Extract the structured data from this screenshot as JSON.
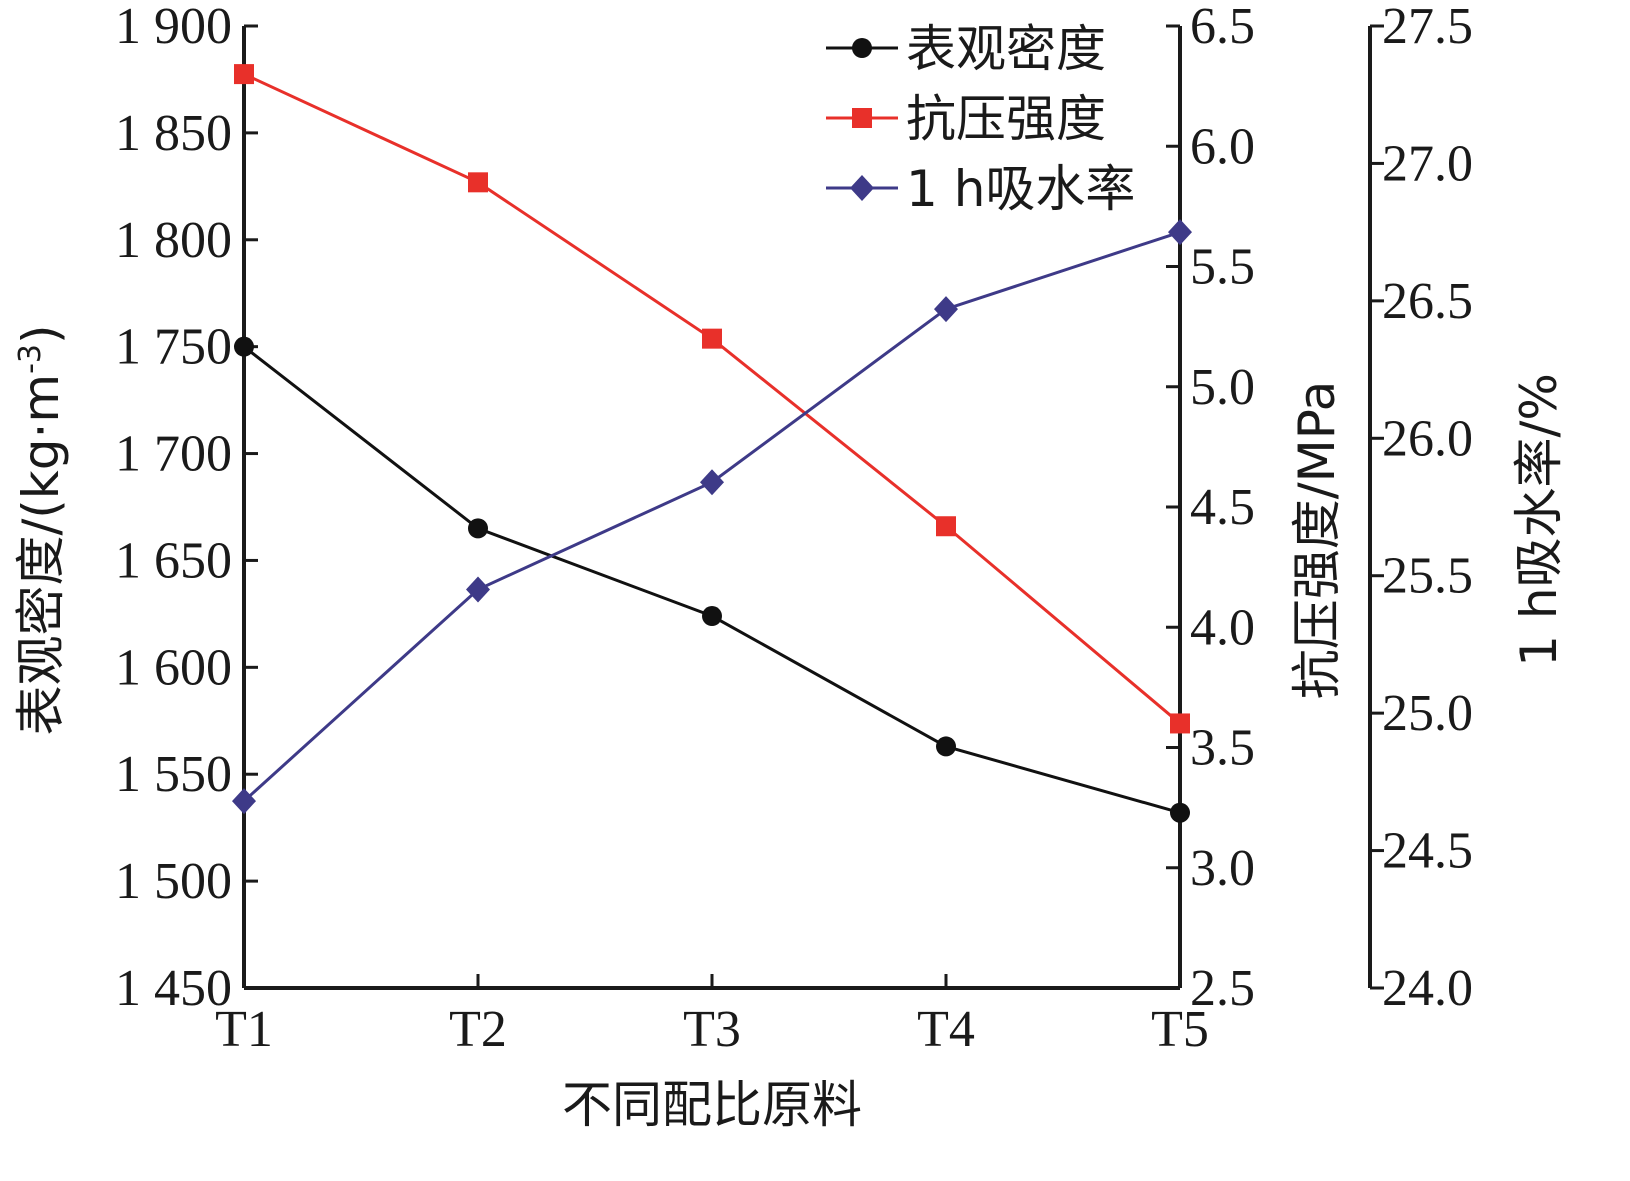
{
  "chart_data": {
    "type": "line",
    "categories": [
      "T1",
      "T2",
      "T3",
      "T4",
      "T5"
    ],
    "xlabel": "不同配比原料",
    "axes": {
      "left": {
        "label": "表观密度/(kg·m-3)",
        "label_main": "表观密度/(kg·m",
        "label_sup": "-3",
        "label_tail": ")",
        "min": 1450,
        "max": 1900,
        "step": 50,
        "ticks": [
          "1 450",
          "1 500",
          "1 550",
          "1 600",
          "1 650",
          "1 700",
          "1 750",
          "1 800",
          "1 850",
          "1 900"
        ]
      },
      "right1": {
        "label": "抗压强度/MPa",
        "min": 2.5,
        "max": 6.5,
        "step": 0.5,
        "ticks": [
          "2.5",
          "3.0",
          "3.5",
          "4.0",
          "4.5",
          "5.0",
          "5.5",
          "6.0",
          "6.5"
        ]
      },
      "right2": {
        "label": "1 h吸水率/%",
        "min": 24.0,
        "max": 27.5,
        "step": 0.5,
        "ticks": [
          "24.0",
          "24.5",
          "25.0",
          "25.5",
          "26.0",
          "26.5",
          "27.0",
          "27.5"
        ]
      }
    },
    "series": [
      {
        "name": "表观密度",
        "axis": "left",
        "color": "#111111",
        "marker": "circle",
        "values": [
          1750,
          1665,
          1624,
          1563,
          1532
        ]
      },
      {
        "name": "抗压强度",
        "axis": "right1",
        "color": "#e8302a",
        "marker": "square",
        "values": [
          6.3,
          5.85,
          5.2,
          4.42,
          3.6
        ]
      },
      {
        "name": "1 h吸水率",
        "axis": "right2",
        "color": "#3e3a88",
        "marker": "diamond",
        "values": [
          24.68,
          25.45,
          25.84,
          26.47,
          26.75
        ]
      }
    ],
    "legend": {
      "position": "top-right"
    },
    "grid": false
  }
}
